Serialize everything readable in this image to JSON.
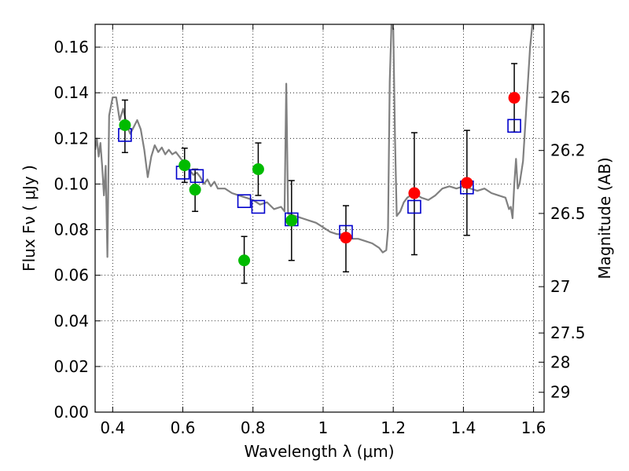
{
  "chart_data": {
    "type": "scatter",
    "xlabel": "Wavelength  λ (μm)",
    "ylabel": "Flux  Fν  ( μJy )",
    "y2label": "Magnitude (AB)",
    "xlim": [
      0.35,
      1.63
    ],
    "ylim": [
      0.0,
      0.17
    ],
    "grid": true,
    "x_ticks": [
      {
        "value": 0.4,
        "label": "0.4"
      },
      {
        "value": 0.6,
        "label": "0.6"
      },
      {
        "value": 0.8,
        "label": "0.8"
      },
      {
        "value": 1.0,
        "label": "1"
      },
      {
        "value": 1.2,
        "label": "1.2"
      },
      {
        "value": 1.4,
        "label": "1.4"
      },
      {
        "value": 1.6,
        "label": "1.6"
      }
    ],
    "y_ticks": [
      {
        "value": 0.0,
        "label": "0.00"
      },
      {
        "value": 0.02,
        "label": "0.02"
      },
      {
        "value": 0.04,
        "label": "0.04"
      },
      {
        "value": 0.06,
        "label": "0.06"
      },
      {
        "value": 0.08,
        "label": "0.08"
      },
      {
        "value": 0.1,
        "label": "0.10"
      },
      {
        "value": 0.12,
        "label": "0.12"
      },
      {
        "value": 0.14,
        "label": "0.14"
      },
      {
        "value": 0.16,
        "label": "0.16"
      }
    ],
    "y2_ticks": [
      {
        "label": "26",
        "flux": 0.138
      },
      {
        "label": "26.2",
        "flux": 0.1147
      },
      {
        "label": "26.5",
        "flux": 0.0871
      },
      {
        "label": "27",
        "flux": 0.055
      },
      {
        "label": "27.5",
        "flux": 0.0347
      },
      {
        "label": "28",
        "flux": 0.0219
      },
      {
        "label": "29",
        "flux": 0.0087
      }
    ],
    "colors": {
      "model_line": "#808080",
      "green_points": "#00bb00",
      "red_points": "#ff0000",
      "squares": "#0000cc",
      "errorbars": "#000000"
    },
    "model_spectrum": [
      [
        0.35,
        0.115
      ],
      [
        0.355,
        0.12
      ],
      [
        0.36,
        0.112
      ],
      [
        0.365,
        0.118
      ],
      [
        0.37,
        0.108
      ],
      [
        0.375,
        0.095
      ],
      [
        0.38,
        0.108
      ],
      [
        0.385,
        0.068
      ],
      [
        0.39,
        0.13
      ],
      [
        0.4,
        0.138
      ],
      [
        0.41,
        0.138
      ],
      [
        0.42,
        0.128
      ],
      [
        0.43,
        0.133
      ],
      [
        0.44,
        0.126
      ],
      [
        0.45,
        0.122
      ],
      [
        0.46,
        0.125
      ],
      [
        0.47,
        0.128
      ],
      [
        0.48,
        0.124
      ],
      [
        0.49,
        0.115
      ],
      [
        0.5,
        0.103
      ],
      [
        0.51,
        0.112
      ],
      [
        0.52,
        0.117
      ],
      [
        0.53,
        0.114
      ],
      [
        0.54,
        0.116
      ],
      [
        0.55,
        0.113
      ],
      [
        0.56,
        0.115
      ],
      [
        0.57,
        0.113
      ],
      [
        0.58,
        0.114
      ],
      [
        0.59,
        0.112
      ],
      [
        0.6,
        0.11
      ],
      [
        0.61,
        0.108
      ],
      [
        0.62,
        0.106
      ],
      [
        0.63,
        0.104
      ],
      [
        0.64,
        0.105
      ],
      [
        0.65,
        0.103
      ],
      [
        0.66,
        0.1
      ],
      [
        0.67,
        0.102
      ],
      [
        0.68,
        0.099
      ],
      [
        0.69,
        0.101
      ],
      [
        0.7,
        0.098
      ],
      [
        0.72,
        0.098
      ],
      [
        0.74,
        0.096
      ],
      [
        0.76,
        0.095
      ],
      [
        0.78,
        0.094
      ],
      [
        0.8,
        0.093
      ],
      [
        0.82,
        0.091
      ],
      [
        0.84,
        0.092
      ],
      [
        0.86,
        0.089
      ],
      [
        0.88,
        0.09
      ],
      [
        0.89,
        0.088
      ],
      [
        0.895,
        0.144
      ],
      [
        0.9,
        0.087
      ],
      [
        0.92,
        0.086
      ],
      [
        0.94,
        0.085
      ],
      [
        0.96,
        0.084
      ],
      [
        0.98,
        0.083
      ],
      [
        1.0,
        0.081
      ],
      [
        1.02,
        0.079
      ],
      [
        1.04,
        0.078
      ],
      [
        1.06,
        0.078
      ],
      [
        1.08,
        0.076
      ],
      [
        1.1,
        0.076
      ],
      [
        1.12,
        0.075
      ],
      [
        1.14,
        0.074
      ],
      [
        1.16,
        0.072
      ],
      [
        1.17,
        0.07
      ],
      [
        1.18,
        0.071
      ],
      [
        1.185,
        0.08
      ],
      [
        1.19,
        0.145
      ],
      [
        1.195,
        0.17
      ],
      [
        1.2,
        0.168
      ],
      [
        1.205,
        0.12
      ],
      [
        1.21,
        0.086
      ],
      [
        1.22,
        0.088
      ],
      [
        1.23,
        0.092
      ],
      [
        1.24,
        0.094
      ],
      [
        1.26,
        0.096
      ],
      [
        1.28,
        0.094
      ],
      [
        1.3,
        0.093
      ],
      [
        1.32,
        0.095
      ],
      [
        1.34,
        0.098
      ],
      [
        1.36,
        0.099
      ],
      [
        1.38,
        0.098
      ],
      [
        1.4,
        0.099
      ],
      [
        1.42,
        0.098
      ],
      [
        1.44,
        0.097
      ],
      [
        1.46,
        0.098
      ],
      [
        1.48,
        0.096
      ],
      [
        1.5,
        0.095
      ],
      [
        1.52,
        0.094
      ],
      [
        1.53,
        0.089
      ],
      [
        1.535,
        0.09
      ],
      [
        1.54,
        0.085
      ],
      [
        1.545,
        0.1
      ],
      [
        1.55,
        0.111
      ],
      [
        1.555,
        0.098
      ],
      [
        1.56,
        0.1
      ],
      [
        1.57,
        0.11
      ],
      [
        1.58,
        0.135
      ],
      [
        1.59,
        0.16
      ],
      [
        1.6,
        0.175
      ]
    ],
    "series": [
      {
        "marker": "circle-green",
        "points": [
          {
            "x": 0.435,
            "y": 0.1258,
            "yerr": [
              0.012,
              0.011
            ]
          },
          {
            "x": 0.605,
            "y": 0.1082,
            "yerr": [
              0.0075,
              0.0075
            ]
          },
          {
            "x": 0.635,
            "y": 0.0975,
            "yerr": [
              0.0095,
              0.009
            ]
          },
          {
            "x": 0.775,
            "y": 0.0665,
            "yerr": [
              0.01,
              0.0105
            ]
          },
          {
            "x": 0.815,
            "y": 0.1065,
            "yerr": [
              0.0115,
              0.0115
            ]
          },
          {
            "x": 0.91,
            "y": 0.084,
            "yerr": [
              0.0175,
              0.0175
            ]
          }
        ]
      },
      {
        "marker": "circle-red",
        "points": [
          {
            "x": 1.065,
            "y": 0.0765,
            "yerr": [
              0.015,
              0.014
            ]
          },
          {
            "x": 1.26,
            "y": 0.096,
            "yerr": [
              0.027,
              0.0265
            ]
          },
          {
            "x": 1.41,
            "y": 0.1005,
            "yerr": [
              0.023,
              0.023
            ]
          },
          {
            "x": 1.545,
            "y": 0.1378,
            "yerr": [
              0.015,
              0.015
            ]
          }
        ]
      },
      {
        "marker": "square-blue",
        "points": [
          {
            "x": 0.435,
            "y": 0.1215
          },
          {
            "x": 0.6,
            "y": 0.105
          },
          {
            "x": 0.64,
            "y": 0.1035
          },
          {
            "x": 0.775,
            "y": 0.0925
          },
          {
            "x": 0.815,
            "y": 0.09
          },
          {
            "x": 0.91,
            "y": 0.0845
          },
          {
            "x": 1.065,
            "y": 0.079
          },
          {
            "x": 1.26,
            "y": 0.09
          },
          {
            "x": 1.41,
            "y": 0.0985
          },
          {
            "x": 1.545,
            "y": 0.1255
          }
        ]
      }
    ]
  }
}
